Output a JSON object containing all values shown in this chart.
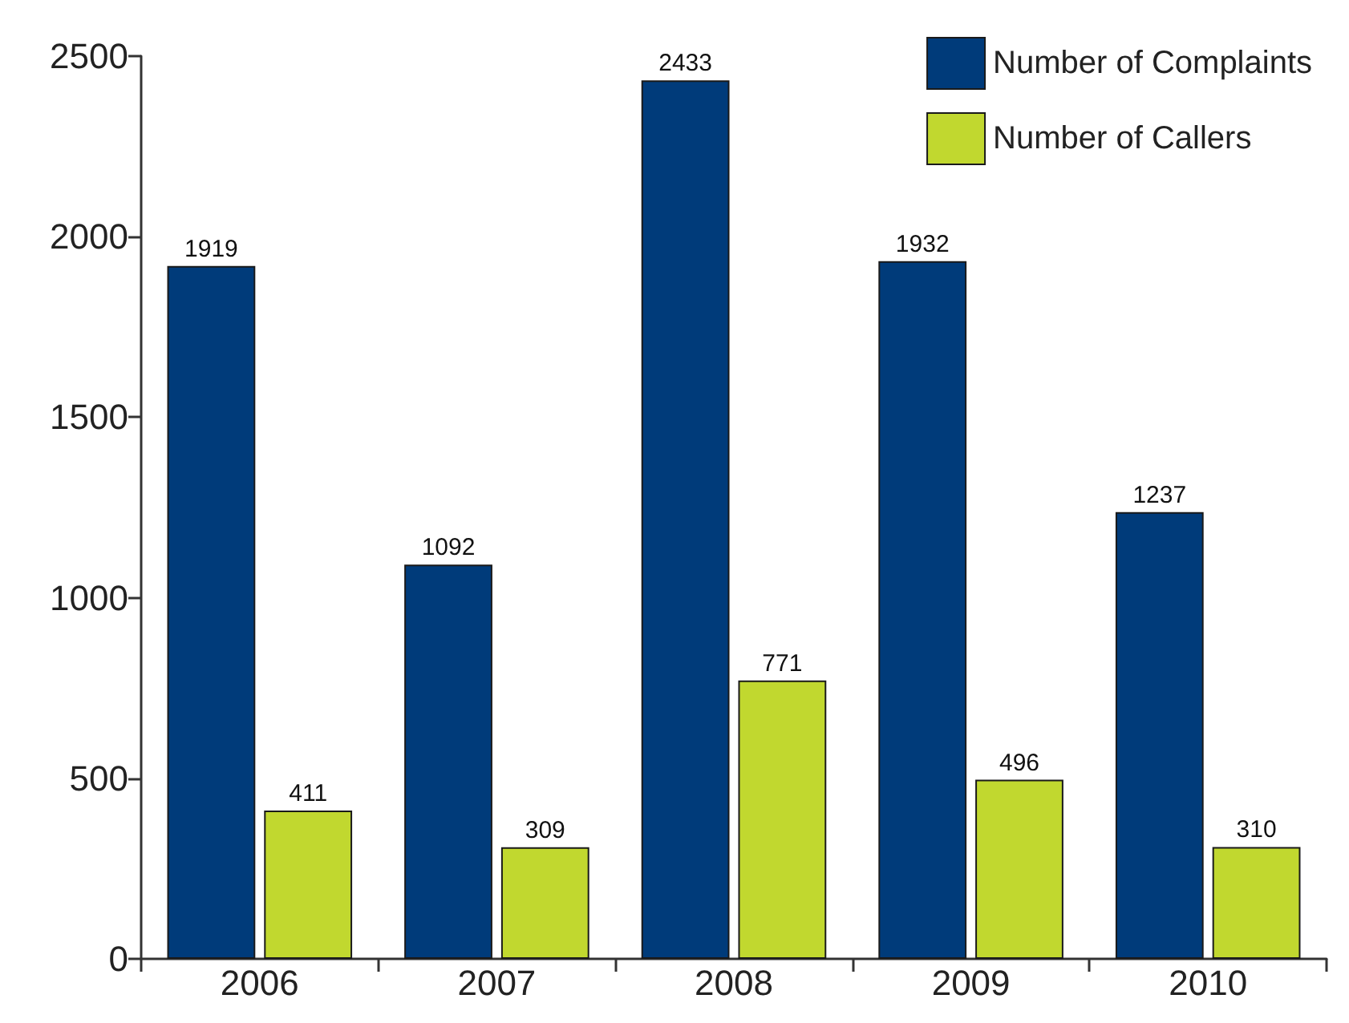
{
  "chart_data": {
    "type": "bar",
    "categories": [
      "2006",
      "2007",
      "2008",
      "2009",
      "2010"
    ],
    "series": [
      {
        "name": "Number of Complaints",
        "color": "#003b7a",
        "values": [
          1919,
          1092,
          2433,
          1932,
          1237
        ]
      },
      {
        "name": "Number of Callers",
        "color": "#c1d82f",
        "values": [
          411,
          309,
          771,
          496,
          310
        ]
      }
    ],
    "ylim": [
      0,
      2500
    ],
    "yticks": [
      0,
      500,
      1000,
      1500,
      2000,
      2500
    ],
    "grid": false,
    "legend": "top right",
    "data_labels": true
  }
}
